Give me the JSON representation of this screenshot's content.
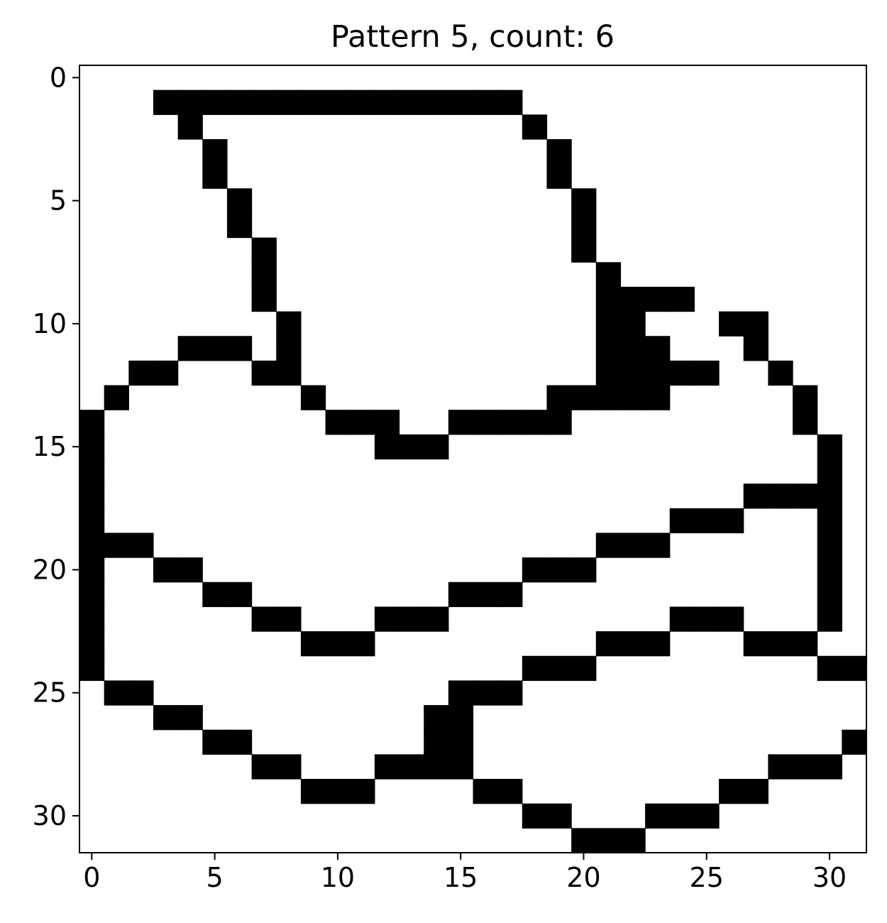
{
  "chart_data": {
    "type": "heatmap",
    "title": "Pattern 5, count: 6",
    "xlabel": "",
    "ylabel": "",
    "grid": false,
    "colormap": {
      "0": "#ffffff",
      "1": "#000000"
    },
    "xlim": [
      -0.5,
      31.5
    ],
    "ylim": [
      31.5,
      -0.5
    ],
    "xticks": [
      0,
      5,
      10,
      15,
      20,
      25,
      30
    ],
    "yticks": [
      0,
      5,
      10,
      15,
      20,
      25,
      30
    ],
    "xtick_labels": [
      "0",
      "5",
      "10",
      "15",
      "20",
      "25",
      "30"
    ],
    "ytick_labels": [
      "0",
      "5",
      "10",
      "15",
      "20",
      "25",
      "30"
    ],
    "rows": 32,
    "cols": 32,
    "filled_cells_by_row": [
      [],
      [
        3,
        4,
        5,
        6,
        7,
        8,
        9,
        10,
        11,
        12,
        13,
        14,
        15,
        16,
        17
      ],
      [
        4,
        18
      ],
      [
        5,
        19
      ],
      [
        5,
        19
      ],
      [
        6,
        20
      ],
      [
        6,
        20
      ],
      [
        7,
        20
      ],
      [
        7,
        21
      ],
      [
        7,
        21,
        22,
        23,
        24
      ],
      [
        8,
        21,
        22,
        26,
        27
      ],
      [
        4,
        5,
        6,
        8,
        21,
        22,
        23,
        27
      ],
      [
        2,
        3,
        7,
        8,
        21,
        22,
        23,
        24,
        25,
        28
      ],
      [
        1,
        9,
        19,
        20,
        21,
        22,
        23,
        29
      ],
      [
        0,
        10,
        11,
        12,
        15,
        16,
        17,
        18,
        19,
        29
      ],
      [
        0,
        12,
        13,
        14,
        30
      ],
      [
        0,
        30
      ],
      [
        0,
        27,
        28,
        29,
        30
      ],
      [
        0,
        24,
        25,
        26,
        30
      ],
      [
        0,
        1,
        2,
        21,
        22,
        23,
        30
      ],
      [
        0,
        3,
        4,
        18,
        19,
        20,
        30
      ],
      [
        0,
        5,
        6,
        15,
        16,
        17,
        30
      ],
      [
        0,
        7,
        8,
        12,
        13,
        14,
        24,
        25,
        26,
        30
      ],
      [
        0,
        9,
        10,
        11,
        21,
        22,
        23,
        27,
        28,
        29
      ],
      [
        0,
        18,
        19,
        20,
        30,
        31
      ],
      [
        1,
        2,
        15,
        16,
        17
      ],
      [
        3,
        4,
        14,
        15
      ],
      [
        5,
        6,
        14,
        15,
        31
      ],
      [
        7,
        8,
        12,
        13,
        14,
        15,
        28,
        29,
        30
      ],
      [
        9,
        10,
        11,
        16,
        17,
        26,
        27
      ],
      [
        18,
        19,
        23,
        24,
        25
      ],
      [
        20,
        21,
        22
      ]
    ]
  }
}
